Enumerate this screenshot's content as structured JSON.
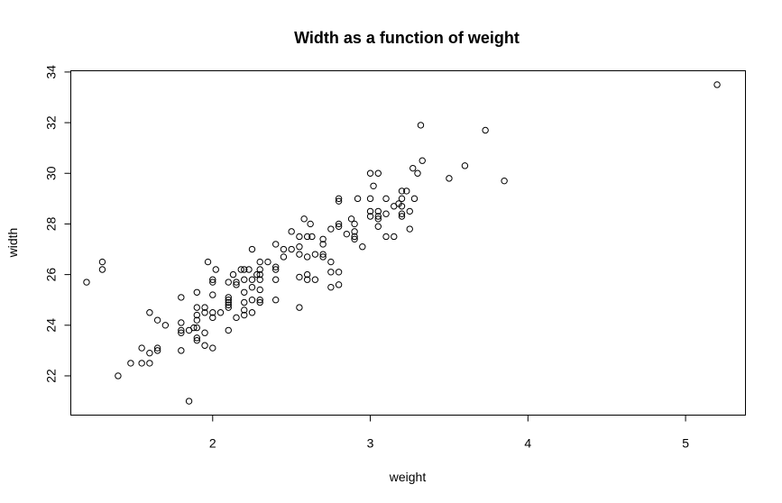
{
  "chart_data": {
    "type": "scatter",
    "title": "Width as a function of weight",
    "xlabel": "weight",
    "ylabel": "width",
    "xlim": [
      1.1,
      5.38
    ],
    "ylim": [
      20.45,
      34.05
    ],
    "xticks": [
      2,
      3,
      4,
      5
    ],
    "yticks": [
      22,
      24,
      26,
      28,
      30,
      32,
      34
    ],
    "grid": false,
    "marker": "open-circle",
    "points": [
      [
        1.2,
        25.7
      ],
      [
        1.3,
        26.5
      ],
      [
        1.3,
        26.2
      ],
      [
        1.4,
        22.0
      ],
      [
        1.48,
        22.5
      ],
      [
        1.55,
        23.1
      ],
      [
        1.55,
        22.5
      ],
      [
        1.6,
        22.5
      ],
      [
        1.6,
        22.9
      ],
      [
        1.6,
        24.5
      ],
      [
        1.65,
        23.0
      ],
      [
        1.65,
        23.1
      ],
      [
        1.65,
        24.2
      ],
      [
        1.7,
        24.0
      ],
      [
        1.8,
        25.1
      ],
      [
        1.8,
        24.1
      ],
      [
        1.8,
        23.8
      ],
      [
        1.8,
        23.7
      ],
      [
        1.8,
        23.0
      ],
      [
        1.85,
        23.8
      ],
      [
        1.85,
        21.0
      ],
      [
        1.88,
        23.9
      ],
      [
        1.9,
        25.3
      ],
      [
        1.9,
        24.7
      ],
      [
        1.9,
        24.4
      ],
      [
        1.9,
        24.2
      ],
      [
        1.9,
        23.9
      ],
      [
        1.9,
        23.5
      ],
      [
        1.9,
        23.4
      ],
      [
        1.95,
        24.7
      ],
      [
        1.95,
        24.5
      ],
      [
        1.95,
        23.7
      ],
      [
        1.95,
        23.2
      ],
      [
        1.97,
        26.5
      ],
      [
        2.0,
        25.8
      ],
      [
        2.0,
        25.7
      ],
      [
        2.0,
        25.2
      ],
      [
        2.0,
        24.5
      ],
      [
        2.0,
        24.3
      ],
      [
        2.0,
        23.1
      ],
      [
        2.02,
        26.2
      ],
      [
        2.05,
        24.5
      ],
      [
        2.1,
        25.7
      ],
      [
        2.1,
        25.1
      ],
      [
        2.1,
        25.0
      ],
      [
        2.1,
        24.9
      ],
      [
        2.1,
        24.8
      ],
      [
        2.1,
        24.7
      ],
      [
        2.1,
        23.8
      ],
      [
        2.13,
        26.0
      ],
      [
        2.15,
        25.7
      ],
      [
        2.15,
        25.6
      ],
      [
        2.15,
        24.3
      ],
      [
        2.18,
        26.2
      ],
      [
        2.2,
        26.2
      ],
      [
        2.2,
        25.8
      ],
      [
        2.2,
        25.3
      ],
      [
        2.2,
        24.9
      ],
      [
        2.2,
        24.6
      ],
      [
        2.2,
        24.4
      ],
      [
        2.23,
        26.2
      ],
      [
        2.25,
        27.0
      ],
      [
        2.25,
        25.8
      ],
      [
        2.25,
        25.5
      ],
      [
        2.25,
        25.0
      ],
      [
        2.25,
        24.5
      ],
      [
        2.28,
        26.0
      ],
      [
        2.3,
        26.5
      ],
      [
        2.3,
        26.2
      ],
      [
        2.3,
        26.0
      ],
      [
        2.3,
        25.8
      ],
      [
        2.3,
        25.4
      ],
      [
        2.3,
        25.0
      ],
      [
        2.3,
        24.9
      ],
      [
        2.35,
        26.5
      ],
      [
        2.4,
        27.2
      ],
      [
        2.4,
        26.3
      ],
      [
        2.4,
        26.2
      ],
      [
        2.4,
        25.8
      ],
      [
        2.4,
        25.0
      ],
      [
        2.45,
        27.0
      ],
      [
        2.45,
        26.7
      ],
      [
        2.5,
        27.7
      ],
      [
        2.5,
        27.0
      ],
      [
        2.55,
        27.5
      ],
      [
        2.55,
        27.1
      ],
      [
        2.55,
        26.8
      ],
      [
        2.55,
        25.9
      ],
      [
        2.55,
        24.7
      ],
      [
        2.58,
        28.2
      ],
      [
        2.6,
        27.5
      ],
      [
        2.6,
        26.7
      ],
      [
        2.6,
        26.0
      ],
      [
        2.6,
        25.8
      ],
      [
        2.62,
        28.0
      ],
      [
        2.63,
        27.5
      ],
      [
        2.65,
        26.8
      ],
      [
        2.65,
        25.8
      ],
      [
        2.7,
        27.4
      ],
      [
        2.7,
        27.2
      ],
      [
        2.7,
        26.8
      ],
      [
        2.7,
        26.7
      ],
      [
        2.75,
        27.8
      ],
      [
        2.75,
        26.5
      ],
      [
        2.75,
        26.1
      ],
      [
        2.75,
        25.5
      ],
      [
        2.8,
        29.0
      ],
      [
        2.8,
        28.9
      ],
      [
        2.8,
        28.0
      ],
      [
        2.8,
        27.9
      ],
      [
        2.8,
        26.1
      ],
      [
        2.8,
        25.6
      ],
      [
        2.85,
        27.6
      ],
      [
        2.88,
        28.2
      ],
      [
        2.9,
        28.0
      ],
      [
        2.9,
        27.7
      ],
      [
        2.9,
        27.5
      ],
      [
        2.9,
        27.4
      ],
      [
        2.92,
        29.0
      ],
      [
        2.95,
        27.1
      ],
      [
        3.0,
        30.0
      ],
      [
        3.0,
        29.0
      ],
      [
        3.0,
        28.5
      ],
      [
        3.0,
        28.3
      ],
      [
        3.02,
        29.5
      ],
      [
        3.05,
        30.0
      ],
      [
        3.05,
        28.5
      ],
      [
        3.05,
        28.3
      ],
      [
        3.05,
        28.2
      ],
      [
        3.05,
        27.9
      ],
      [
        3.1,
        29.0
      ],
      [
        3.1,
        28.4
      ],
      [
        3.1,
        27.5
      ],
      [
        3.15,
        28.7
      ],
      [
        3.15,
        27.5
      ],
      [
        3.18,
        28.8
      ],
      [
        3.2,
        29.3
      ],
      [
        3.2,
        29.0
      ],
      [
        3.2,
        28.7
      ],
      [
        3.2,
        28.4
      ],
      [
        3.2,
        28.3
      ],
      [
        3.23,
        29.3
      ],
      [
        3.25,
        28.5
      ],
      [
        3.25,
        27.8
      ],
      [
        3.27,
        30.2
      ],
      [
        3.28,
        29.0
      ],
      [
        3.3,
        30.0
      ],
      [
        3.32,
        31.9
      ],
      [
        3.33,
        30.5
      ],
      [
        3.5,
        29.8
      ],
      [
        3.6,
        30.3
      ],
      [
        3.73,
        31.7
      ],
      [
        3.85,
        29.7
      ],
      [
        5.2,
        33.5
      ]
    ]
  }
}
